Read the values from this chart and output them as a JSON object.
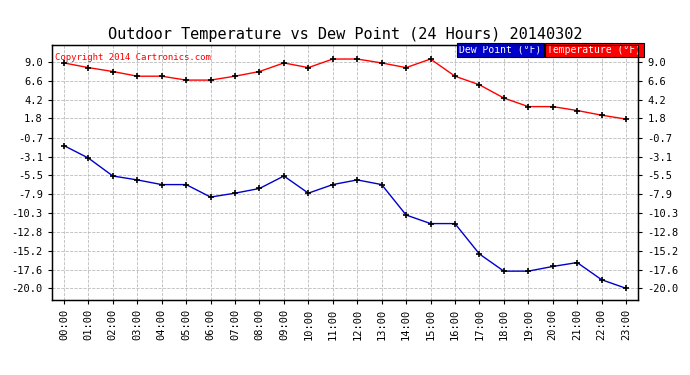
{
  "title": "Outdoor Temperature vs Dew Point (24 Hours) 20140302",
  "copyright": "Copyright 2014 Cartronics.com",
  "hours": [
    "00:00",
    "01:00",
    "02:00",
    "03:00",
    "04:00",
    "05:00",
    "06:00",
    "07:00",
    "08:00",
    "09:00",
    "10:00",
    "11:00",
    "12:00",
    "13:00",
    "14:00",
    "15:00",
    "16:00",
    "17:00",
    "18:00",
    "19:00",
    "20:00",
    "21:00",
    "22:00",
    "23:00"
  ],
  "temperature": [
    8.9,
    8.3,
    7.8,
    7.2,
    7.2,
    6.7,
    6.7,
    7.2,
    7.8,
    8.9,
    8.3,
    9.4,
    9.4,
    8.9,
    8.3,
    9.4,
    7.2,
    6.1,
    4.4,
    3.3,
    3.3,
    2.8,
    2.2,
    1.7
  ],
  "dew_point": [
    -1.7,
    -3.3,
    -5.6,
    -6.1,
    -6.7,
    -6.7,
    -8.3,
    -7.8,
    -7.2,
    -5.6,
    -7.8,
    -6.7,
    -6.1,
    -6.7,
    -10.6,
    -11.7,
    -11.7,
    -15.6,
    -17.8,
    -17.8,
    -17.2,
    -16.7,
    -18.9,
    -20.0
  ],
  "temp_color": "#ff0000",
  "dew_color": "#0000cc",
  "bg_color": "#ffffff",
  "grid_color": "#bbbbbb",
  "ylim_min": -21.5,
  "ylim_max": 11.2,
  "yticks": [
    9.0,
    6.6,
    4.2,
    1.8,
    -0.7,
    -3.1,
    -5.5,
    -7.9,
    -10.3,
    -12.8,
    -15.2,
    -17.6,
    -20.0
  ],
  "title_fontsize": 11,
  "tick_fontsize": 7.5,
  "legend_dew_label": "Dew Point (°F)",
  "legend_temp_label": "Temperature (°F)"
}
